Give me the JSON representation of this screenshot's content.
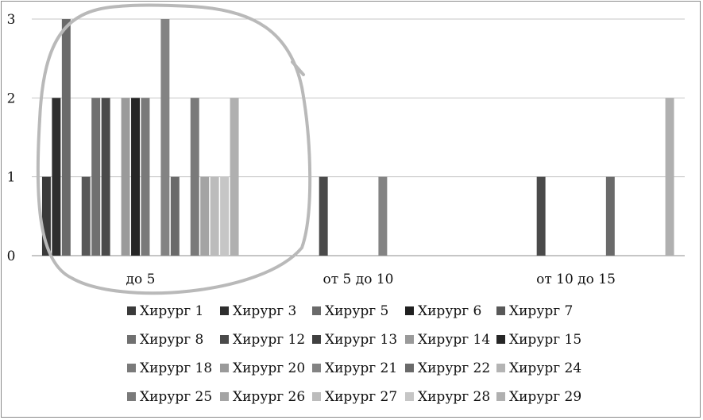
{
  "chart_data": {
    "type": "bar",
    "categories": [
      "до 5",
      "от 5 до 10",
      "от 10 до 15"
    ],
    "ylim": [
      0,
      3
    ],
    "yticks": [
      "0",
      "1",
      "2",
      "3"
    ],
    "grid": true,
    "legend_position": "bottom",
    "series": [
      {
        "name": "Хирург 1",
        "color": "#3a3a3a",
        "values": [
          1,
          0,
          0
        ]
      },
      {
        "name": "Хирург 3",
        "color": "#2e2e2e",
        "values": [
          2,
          0,
          0
        ]
      },
      {
        "name": "Хирург 5",
        "color": "#6a6a6a",
        "values": [
          3,
          0,
          0
        ]
      },
      {
        "name": "Хирург 6",
        "color": "#202020",
        "values": [
          0,
          0,
          0
        ]
      },
      {
        "name": "Хирург 7",
        "color": "#585858",
        "values": [
          1,
          0,
          0
        ]
      },
      {
        "name": "Хирург 8",
        "color": "#707070",
        "values": [
          2,
          0,
          0
        ]
      },
      {
        "name": "Хирург 12",
        "color": "#4a4a4a",
        "values": [
          2,
          1,
          1
        ]
      },
      {
        "name": "Хирург 13",
        "color": "#404040",
        "values": [
          0,
          0,
          0
        ]
      },
      {
        "name": "Хирург 14",
        "color": "#9a9a9a",
        "values": [
          2,
          0,
          0
        ]
      },
      {
        "name": "Хирург 15",
        "color": "#262626",
        "values": [
          2,
          0,
          0
        ]
      },
      {
        "name": "Хирург 18",
        "color": "#7a7a7a",
        "values": [
          2,
          0,
          0
        ]
      },
      {
        "name": "Хирург 20",
        "color": "#9a9a9a",
        "values": [
          0,
          0,
          0
        ]
      },
      {
        "name": "Хирург 21",
        "color": "#838383",
        "values": [
          3,
          1,
          0
        ]
      },
      {
        "name": "Хирург 22",
        "color": "#6a6a6a",
        "values": [
          1,
          0,
          1
        ]
      },
      {
        "name": "Хирург 24",
        "color": "#b4b4b4",
        "values": [
          0,
          0,
          0
        ]
      },
      {
        "name": "Хирург 25",
        "color": "#7a7a7a",
        "values": [
          2,
          0,
          0
        ]
      },
      {
        "name": "Хирург 26",
        "color": "#a4a4a4",
        "values": [
          1,
          0,
          0
        ]
      },
      {
        "name": "Хирург 27",
        "color": "#bcbcbc",
        "values": [
          1,
          0,
          0
        ]
      },
      {
        "name": "Хирург 28",
        "color": "#c6c6c6",
        "values": [
          1,
          0,
          0
        ]
      },
      {
        "name": "Хирург 29",
        "color": "#b0b0b0",
        "values": [
          2,
          0,
          2
        ]
      }
    ]
  },
  "annotation": {
    "shape": "hand-drawn-circle",
    "color": "#b9b9b9",
    "around": "до 5"
  }
}
